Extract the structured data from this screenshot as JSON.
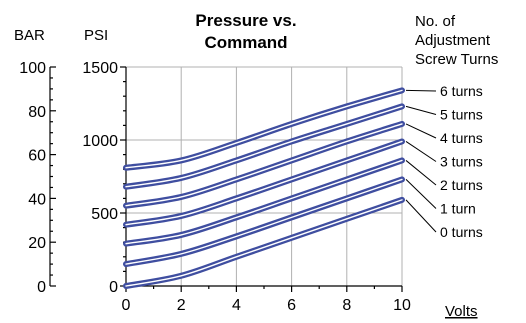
{
  "chart_data": {
    "type": "line",
    "title": [
      "Pressure vs.",
      "Command"
    ],
    "xlabel": "Volts",
    "ylabel_left": "BAR",
    "ylabel_right": "PSI",
    "xlim": [
      0,
      10
    ],
    "ylim_psi": [
      0,
      1500
    ],
    "ylim_bar": [
      0,
      100
    ],
    "x_ticks": [
      "0",
      "2",
      "4",
      "6",
      "8",
      "10"
    ],
    "psi_ticks": [
      "0",
      "500",
      "1000",
      "1500"
    ],
    "bar_ticks": [
      "0",
      "20",
      "40",
      "60",
      "80",
      "100"
    ],
    "grid": true,
    "legend_title": [
      "No. of",
      "Adjustment",
      "Screw Turns"
    ],
    "series": [
      {
        "name": "6 turns",
        "x": [
          0,
          2,
          4,
          6,
          8,
          10
        ],
        "y": [
          810,
          860,
          980,
          1110,
          1230,
          1340
        ]
      },
      {
        "name": "5 turns",
        "x": [
          0,
          2,
          4,
          6,
          8,
          10
        ],
        "y": [
          680,
          740,
          860,
          990,
          1110,
          1230
        ]
      },
      {
        "name": "4 turns",
        "x": [
          0,
          2,
          4,
          6,
          8,
          10
        ],
        "y": [
          550,
          610,
          730,
          860,
          990,
          1110
        ]
      },
      {
        "name": "3 turns",
        "x": [
          0,
          2,
          4,
          6,
          8,
          10
        ],
        "y": [
          420,
          480,
          600,
          730,
          860,
          990
        ]
      },
      {
        "name": "2 turns",
        "x": [
          0,
          2,
          4,
          6,
          8,
          10
        ],
        "y": [
          290,
          350,
          470,
          600,
          730,
          860
        ]
      },
      {
        "name": "1 turn",
        "x": [
          0,
          2,
          4,
          6,
          8,
          10
        ],
        "y": [
          150,
          220,
          340,
          470,
          600,
          730
        ]
      },
      {
        "name": "0 turns",
        "x": [
          0,
          2,
          4,
          6,
          8,
          10
        ],
        "y": [
          0,
          70,
          200,
          330,
          460,
          590
        ]
      }
    ]
  }
}
